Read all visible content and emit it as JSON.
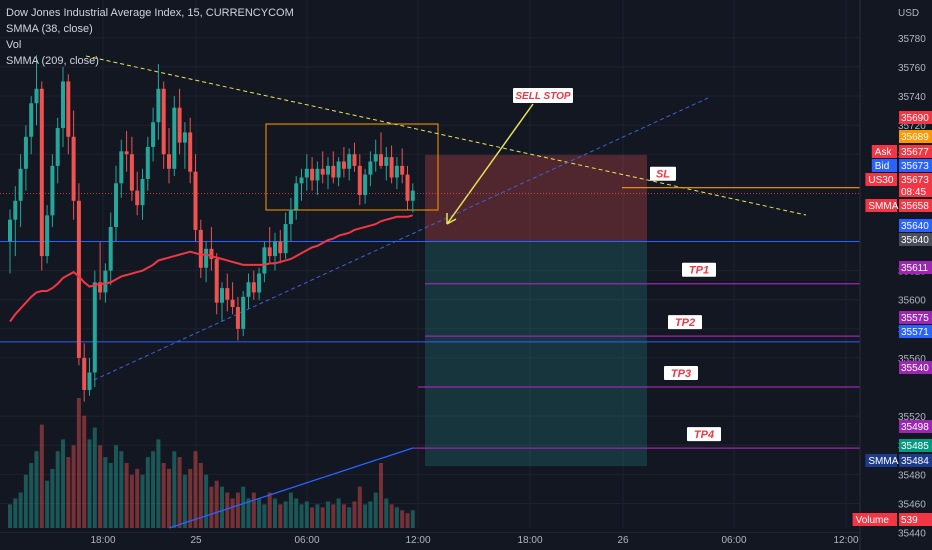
{
  "header": {
    "title": "Dow Jones Industrial Average Index, 15, CURRENCYCOM",
    "indicators": [
      "SMMA (38, close)",
      "Vol",
      "SMMA (209, close)"
    ],
    "currency": "USD"
  },
  "colors": {
    "background": "#131722",
    "up": "#26a69a",
    "down": "#ef5350",
    "smma38": "#f23645",
    "smma209": "#2962ff",
    "trendline_upper": "#e6e658",
    "trendline_lower": "#3f5fd9",
    "box": "#ff9800",
    "sl_line": "#ff9800",
    "tp_line": "#9c27b0",
    "entry_line": "#2962ff",
    "arrow": "#e6e658",
    "label_text": "#f23645"
  },
  "chart_data": {
    "type": "candlestick",
    "timeframe": "15",
    "x_tick_labels": [
      "18:00",
      "25",
      "06:00",
      "12:00",
      "18:00",
      "26",
      "06:00",
      "12:00"
    ],
    "y_tick_labels": [
      35780,
      35760,
      35740,
      35720,
      35700,
      35620,
      35600,
      35580,
      35560,
      35520,
      35500,
      35480,
      35460,
      35440
    ],
    "y_range": [
      35428,
      35806
    ],
    "candles": [
      [
        35640,
        35662,
        35618,
        35655
      ],
      [
        35655,
        35678,
        35630,
        35668
      ],
      [
        35668,
        35700,
        35650,
        35690
      ],
      [
        35690,
        35720,
        35675,
        35712
      ],
      [
        35712,
        35740,
        35700,
        35735
      ],
      [
        35735,
        35768,
        35720,
        35745
      ],
      [
        35745,
        35750,
        35620,
        35630
      ],
      [
        35630,
        35665,
        35625,
        35658
      ],
      [
        35658,
        35700,
        35650,
        35692
      ],
      [
        35692,
        35725,
        35680,
        35718
      ],
      [
        35718,
        35760,
        35705,
        35750
      ],
      [
        35750,
        35755,
        35700,
        35712
      ],
      [
        35712,
        35730,
        35655,
        35668
      ],
      [
        35668,
        35680,
        35555,
        35560
      ],
      [
        35560,
        35570,
        35530,
        35538
      ],
      [
        35538,
        35560,
        35534,
        35550
      ],
      [
        35550,
        35620,
        35540,
        35612
      ],
      [
        35612,
        35640,
        35600,
        35605
      ],
      [
        35605,
        35625,
        35598,
        35620
      ],
      [
        35620,
        35660,
        35610,
        35650
      ],
      [
        35650,
        35692,
        35640,
        35680
      ],
      [
        35680,
        35710,
        35670,
        35702
      ],
      [
        35702,
        35716,
        35688,
        35700
      ],
      [
        35700,
        35712,
        35668,
        35675
      ],
      [
        35675,
        35688,
        35658,
        35665
      ],
      [
        35665,
        35690,
        35655,
        35683
      ],
      [
        35683,
        35712,
        35675,
        35705
      ],
      [
        35705,
        35732,
        35695,
        35722
      ],
      [
        35722,
        35762,
        35710,
        35745
      ],
      [
        35745,
        35750,
        35690,
        35700
      ],
      [
        35700,
        35718,
        35680,
        35690
      ],
      [
        35690,
        35740,
        35685,
        35732
      ],
      [
        35732,
        35745,
        35700,
        35708
      ],
      [
        35708,
        35722,
        35690,
        35715
      ],
      [
        35715,
        35725,
        35680,
        35688
      ],
      [
        35688,
        35700,
        35640,
        35648
      ],
      [
        35648,
        35655,
        35615,
        35622
      ],
      [
        35622,
        35640,
        35612,
        35635
      ],
      [
        35635,
        35650,
        35620,
        35628
      ],
      [
        35628,
        35632,
        35590,
        35598
      ],
      [
        35598,
        35612,
        35585,
        35608
      ],
      [
        35608,
        35618,
        35592,
        35600
      ],
      [
        35600,
        35612,
        35590,
        35595
      ],
      [
        35595,
        35602,
        35572,
        35580
      ],
      [
        35580,
        35606,
        35575,
        35602
      ],
      [
        35602,
        35618,
        35594,
        35612
      ],
      [
        35612,
        35620,
        35600,
        35605
      ],
      [
        35605,
        35622,
        35600,
        35618
      ],
      [
        35618,
        35640,
        35612,
        35636
      ],
      [
        35636,
        35650,
        35625,
        35630
      ],
      [
        35630,
        35646,
        35620,
        35640
      ],
      [
        35640,
        35648,
        35625,
        35632
      ],
      [
        35632,
        35660,
        35628,
        35652
      ],
      [
        35652,
        35670,
        35640,
        35662
      ],
      [
        35662,
        35685,
        35655,
        35680
      ],
      [
        35680,
        35690,
        35668,
        35684
      ],
      [
        35684,
        35700,
        35675,
        35690
      ],
      [
        35690,
        35698,
        35675,
        35682
      ],
      [
        35682,
        35695,
        35672,
        35690
      ],
      [
        35690,
        35702,
        35680,
        35686
      ],
      [
        35686,
        35698,
        35676,
        35692
      ],
      [
        35692,
        35702,
        35680,
        35684
      ],
      [
        35684,
        35698,
        35678,
        35695
      ],
      [
        35695,
        35705,
        35684,
        35690
      ],
      [
        35690,
        35704,
        35682,
        35700
      ],
      [
        35700,
        35708,
        35688,
        35692
      ],
      [
        35692,
        35700,
        35665,
        35672
      ],
      [
        35672,
        35690,
        35666,
        35686
      ],
      [
        35686,
        35702,
        35678,
        35695
      ],
      [
        35695,
        35710,
        35688,
        35700
      ],
      [
        35700,
        35715,
        35690,
        35692
      ],
      [
        35692,
        35705,
        35682,
        35698
      ],
      [
        35698,
        35706,
        35680,
        35684
      ],
      [
        35684,
        35698,
        35676,
        35692
      ],
      [
        35692,
        35704,
        35680,
        35686
      ],
      [
        35686,
        35692,
        35662,
        35668
      ],
      [
        35668,
        35680,
        35660,
        35675
      ]
    ],
    "volume": [
      8,
      10,
      12,
      18,
      22,
      26,
      35,
      16,
      20,
      26,
      30,
      24,
      28,
      44,
      38,
      30,
      34,
      28,
      24,
      22,
      28,
      26,
      22,
      18,
      20,
      18,
      24,
      26,
      30,
      22,
      20,
      26,
      24,
      18,
      20,
      26,
      22,
      18,
      14,
      16,
      14,
      12,
      10,
      12,
      14,
      10,
      12,
      10,
      8,
      12,
      10,
      8,
      9,
      12,
      10,
      8,
      9,
      7,
      8,
      7,
      9,
      8,
      10,
      8,
      7,
      9,
      14,
      8,
      9,
      12,
      22,
      10,
      8,
      7,
      6,
      5,
      6
    ],
    "smma_38": [
      35585,
      35590,
      35594,
      35598,
      35602,
      35605,
      35606,
      35606,
      35608,
      35611,
      35615,
      35617,
      35619,
      35616,
      35612,
      35609,
      35610,
      35611,
      35611,
      35612,
      35614,
      35616,
      35617,
      35618,
      35619,
      35620,
      35622,
      35624,
      35627,
      35628,
      35629,
      35630,
      35631,
      35632,
      35633,
      35632,
      35631,
      35631,
      35630,
      35629,
      35628,
      35627,
      35626,
      35625,
      35624,
      35624,
      35624,
      35624,
      35624,
      35625,
      35625,
      35626,
      35627,
      35628,
      35630,
      35632,
      35634,
      35636,
      35637,
      35639,
      35641,
      35642,
      35644,
      35645,
      35646,
      35648,
      35649,
      35650,
      35651,
      35652,
      35654,
      35655,
      35656,
      35657,
      35657,
      35657,
      35658
    ],
    "smma_209": [
      35380,
      35382,
      35384,
      35386,
      35388,
      35390,
      35392,
      35394,
      35396,
      35398,
      35400,
      35402,
      35404,
      35406,
      35408,
      35410,
      35412,
      35414,
      35416,
      35418,
      35420,
      35422,
      35424,
      35426,
      35428,
      35430,
      35432,
      35434,
      35436,
      35438,
      35440,
      35442,
      35444,
      35446,
      35448,
      35450,
      35452,
      35454,
      35456,
      35458,
      35460,
      35462,
      35464,
      35466,
      35468,
      35470,
      35472,
      35474,
      35476,
      35478,
      35480,
      35482,
      35484,
      35486,
      35488,
      35490,
      35492,
      35494,
      35496,
      35498,
      35500,
      35502,
      35504,
      35506,
      35508,
      35510,
      35512,
      35514,
      35516,
      35518,
      35520,
      35522,
      35524,
      35526,
      35528,
      35530,
      35484
    ],
    "trade_levels": [
      {
        "label": "SL",
        "price": 35677
      },
      {
        "label": "TP1",
        "price": 35611
      },
      {
        "label": "TP2",
        "price": 35575
      },
      {
        "label": "TP3",
        "price": 35540
      },
      {
        "label": "TP4",
        "price": 35498
      }
    ],
    "entry_price": 35640,
    "horizontal_lines": [
      35640,
      35571
    ],
    "annotation": "SELL STOP",
    "price_tags": [
      {
        "label": "",
        "value": "35690",
        "color": "#f23645"
      },
      {
        "label": "",
        "value": "35689",
        "color": "#ff9800"
      },
      {
        "label": "Ask",
        "value": "35677",
        "color": "#f23645"
      },
      {
        "label": "Bid",
        "value": "35673",
        "color": "#2962ff"
      },
      {
        "label": "US30",
        "value": "35673",
        "extra": "08:45",
        "color": "#f23645"
      },
      {
        "label": "SMMA",
        "value": "35658",
        "color": "#f23645"
      },
      {
        "label": "",
        "value": "35640",
        "color": "#2962ff"
      },
      {
        "label": "",
        "value": "35640",
        "color": "#4a4e5a"
      },
      {
        "label": "",
        "value": "35611",
        "color": "#9c27b0"
      },
      {
        "label": "",
        "value": "35575",
        "color": "#9c27b0"
      },
      {
        "label": "",
        "value": "35571",
        "color": "#2962ff"
      },
      {
        "label": "",
        "value": "35540",
        "color": "#9c27b0"
      },
      {
        "label": "",
        "value": "35498",
        "color": "#9c27b0"
      },
      {
        "label": "",
        "value": "35485",
        "color": "#089981"
      },
      {
        "label": "SMMA",
        "value": "35484",
        "color": "#1e3a8a"
      },
      {
        "label": "Volume",
        "value": "539",
        "color": "#f23645"
      }
    ]
  }
}
